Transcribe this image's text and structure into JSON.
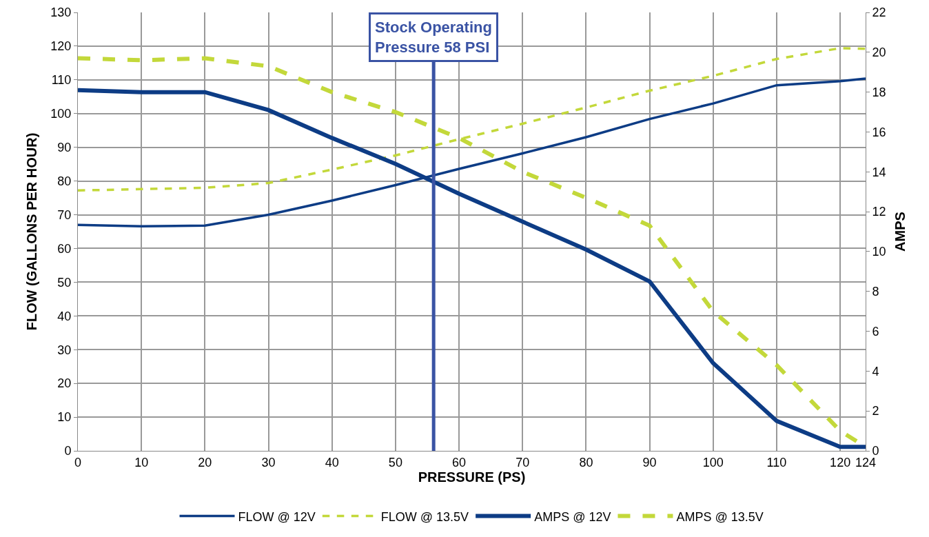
{
  "chart_data": {
    "type": "line",
    "xlabel": "PRESSURE (PS)",
    "ylabel": "FLOW (GALLONS PER HOUR)",
    "y2label": "AMPS",
    "x": [
      0,
      10,
      20,
      30,
      40,
      50,
      60,
      70,
      80,
      90,
      100,
      110,
      120,
      124
    ],
    "xlim": [
      0,
      124
    ],
    "xticks": [
      0,
      10,
      20,
      30,
      40,
      50,
      60,
      70,
      80,
      90,
      100,
      110,
      120,
      124
    ],
    "ylim": [
      0,
      130
    ],
    "yticks": [
      0,
      10,
      20,
      30,
      40,
      50,
      60,
      70,
      80,
      90,
      100,
      110,
      120,
      130
    ],
    "y2lim": [
      0,
      22
    ],
    "y2ticks": [
      0,
      2,
      4,
      6,
      8,
      10,
      12,
      14,
      16,
      18,
      20,
      22
    ],
    "series": [
      {
        "name": "FLOW @ 12V",
        "color": "#0d3c85",
        "line_style": "solid",
        "values": [
          67,
          66.6,
          66.8,
          70,
          74.2,
          78.8,
          83.6,
          88.2,
          93,
          98.4,
          103,
          108.4,
          109.6,
          110.4
        ]
      },
      {
        "name": "FLOW @ 13.5V",
        "color": "#c3d83a",
        "line_style": "dashed",
        "values": [
          77.2,
          77.6,
          78,
          79.4,
          83.4,
          87.6,
          92.4,
          97,
          101.8,
          106.8,
          111.2,
          116.2,
          119.4,
          119.2
        ]
      },
      {
        "name": "AMPS @ 12V",
        "color": "#0d3c85",
        "line_style": "solid",
        "axis": "y2",
        "values": [
          18.1,
          18,
          18,
          17.1,
          15.7,
          14.4,
          12.9,
          11.5,
          10.1,
          8.5,
          4.4,
          1.5,
          0.2,
          0.2
        ]
      },
      {
        "name": "AMPS @ 13.5V",
        "color": "#c3d83a",
        "line_style": "dashed",
        "axis": "y2",
        "values": [
          19.7,
          19.6,
          19.7,
          19.3,
          18,
          17,
          15.7,
          14,
          12.7,
          11.3,
          7,
          4.3,
          1,
          0.2
        ]
      }
    ],
    "ref_lines": [
      {
        "axis": "x",
        "value": 56,
        "label": "Stock Operating\nPressure 58 PSI",
        "color": "#3a53a4"
      }
    ],
    "grid": true,
    "legend": "bottom",
    "marker": "none"
  }
}
